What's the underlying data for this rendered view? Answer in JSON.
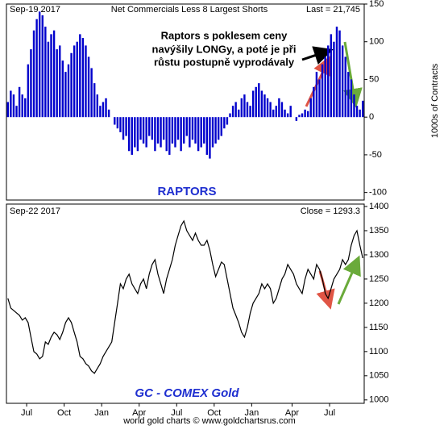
{
  "chart_data": [
    {
      "type": "bar",
      "title": "Net Commercials Less 8 Largest Shorts",
      "date": "Sep-19  2017",
      "last_label": "Last = 21,745",
      "y_label": "1000s of Contracts",
      "annotations": [
        "Raptors s poklesem ceny",
        "navýšily LONGy, a poté je při",
        "růstu postupně vyprodávaly"
      ],
      "label": "RAPTORS",
      "color": "#0000cc",
      "xlim": [
        0,
        124
      ],
      "ylim": [
        -110,
        150
      ],
      "yticks": [
        -100,
        -50,
        0,
        50,
        100,
        150
      ],
      "values": [
        20,
        35,
        30,
        15,
        40,
        30,
        25,
        70,
        90,
        115,
        130,
        140,
        135,
        120,
        100,
        110,
        115,
        90,
        95,
        75,
        60,
        70,
        85,
        95,
        100,
        110,
        105,
        95,
        80,
        65,
        45,
        30,
        15,
        20,
        25,
        10,
        0,
        -10,
        -15,
        -20,
        -30,
        -25,
        -45,
        -50,
        -40,
        -45,
        -30,
        -35,
        -40,
        -25,
        -30,
        -45,
        -35,
        -40,
        -30,
        -45,
        -50,
        -35,
        -40,
        -30,
        -45,
        -35,
        -25,
        -40,
        -30,
        -35,
        -45,
        -40,
        -35,
        -50,
        -55,
        -40,
        -35,
        -30,
        -25,
        -15,
        -10,
        5,
        15,
        20,
        10,
        25,
        30,
        20,
        15,
        35,
        40,
        45,
        35,
        30,
        25,
        20,
        10,
        15,
        25,
        20,
        10,
        5,
        15,
        0,
        -5,
        3,
        5,
        10,
        8,
        25,
        40,
        60,
        50,
        70,
        80,
        95,
        110,
        100,
        120,
        115,
        95,
        80,
        60,
        50,
        30,
        15,
        10,
        21.745
      ]
    },
    {
      "type": "line",
      "date": "Sep-22  2017",
      "last_label": "Close = 1293.3",
      "label": "GC - COMEX Gold",
      "color": "#000000",
      "xlim": [
        0,
        124
      ],
      "ylim": [
        993,
        1405
      ],
      "yticks": [
        1000,
        1050,
        1100,
        1150,
        1200,
        1250,
        1300,
        1350,
        1400
      ],
      "xticks": [
        {
          "value": 7,
          "label": "Jul"
        },
        {
          "value": 20,
          "label": "Oct"
        },
        {
          "value": 33,
          "label": "Jan"
        },
        {
          "value": 46,
          "label": "Apr"
        },
        {
          "value": 59,
          "label": "Jul"
        },
        {
          "value": 72,
          "label": "Oct"
        },
        {
          "value": 85,
          "label": "Jan"
        },
        {
          "value": 99,
          "label": "Apr"
        },
        {
          "value": 112,
          "label": "Jul"
        }
      ],
      "values": [
        1210,
        1190,
        1185,
        1180,
        1175,
        1165,
        1170,
        1160,
        1130,
        1100,
        1095,
        1085,
        1090,
        1120,
        1115,
        1130,
        1140,
        1135,
        1125,
        1140,
        1160,
        1170,
        1160,
        1140,
        1120,
        1090,
        1085,
        1075,
        1070,
        1060,
        1055,
        1065,
        1075,
        1090,
        1100,
        1110,
        1120,
        1160,
        1200,
        1240,
        1230,
        1250,
        1260,
        1240,
        1230,
        1220,
        1240,
        1250,
        1230,
        1260,
        1280,
        1290,
        1260,
        1240,
        1220,
        1250,
        1270,
        1290,
        1320,
        1340,
        1360,
        1370,
        1350,
        1340,
        1330,
        1345,
        1330,
        1320,
        1320,
        1330,
        1310,
        1280,
        1255,
        1270,
        1285,
        1280,
        1250,
        1220,
        1190,
        1175,
        1160,
        1140,
        1130,
        1150,
        1180,
        1200,
        1210,
        1220,
        1240,
        1230,
        1240,
        1230,
        1200,
        1210,
        1230,
        1250,
        1260,
        1280,
        1270,
        1260,
        1240,
        1230,
        1220,
        1250,
        1270,
        1260,
        1250,
        1280,
        1270,
        1250,
        1220,
        1210,
        1230,
        1250,
        1260,
        1270,
        1290,
        1280,
        1290,
        1320,
        1340,
        1350,
        1320,
        1293.3
      ]
    }
  ],
  "footer": "world gold charts © www.goldchartsrus.com"
}
